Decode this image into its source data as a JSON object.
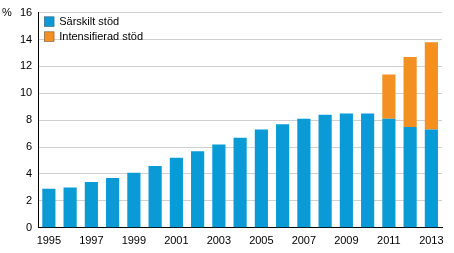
{
  "chart_data": {
    "type": "bar",
    "ylabel": "%",
    "categories": [
      "1995",
      null,
      "1997",
      null,
      "1999",
      null,
      "2001",
      null,
      "2003",
      null,
      "2005",
      null,
      "2007",
      null,
      "2009",
      null,
      "2011",
      null,
      "2013"
    ],
    "series": [
      {
        "name": "Särskilt stöd",
        "color": "#0a9bd6",
        "values": [
          2.9,
          3.0,
          3.4,
          3.7,
          4.1,
          4.6,
          5.2,
          5.7,
          6.2,
          6.7,
          7.3,
          7.7,
          8.1,
          8.4,
          8.5,
          8.5,
          8.1,
          7.5,
          7.3
        ]
      },
      {
        "name": "Intensifierad stöd",
        "color": "#f39021",
        "values": [
          null,
          null,
          null,
          null,
          null,
          null,
          null,
          null,
          null,
          null,
          null,
          null,
          null,
          null,
          null,
          null,
          3.3,
          5.2,
          6.5
        ]
      }
    ],
    "stacked": true,
    "ylim": [
      0,
      16
    ],
    "yticks": [
      0,
      2,
      4,
      6,
      8,
      10,
      12,
      14,
      16
    ],
    "grid": true,
    "legend": "upper left"
  }
}
